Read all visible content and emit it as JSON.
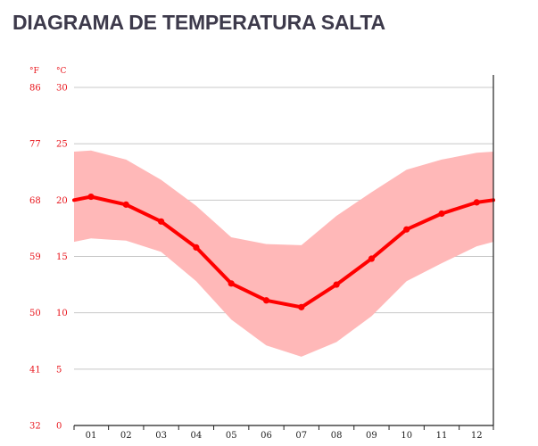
{
  "title": "DIAGRAMA DE TEMPERATURA SALTA",
  "chart_data": {
    "type": "line",
    "title": "DIAGRAMA DE TEMPERATURA SALTA",
    "xlabel": "",
    "ylabel": "",
    "unit_f": "°F",
    "unit_c": "°C",
    "categories": [
      "01",
      "02",
      "03",
      "04",
      "05",
      "06",
      "07",
      "08",
      "09",
      "10",
      "11",
      "12"
    ],
    "y_ticks_c": [
      "0",
      "5",
      "10",
      "15",
      "20",
      "25",
      "30"
    ],
    "y_ticks_f": [
      "32",
      "41",
      "50",
      "59",
      "68",
      "77",
      "86"
    ],
    "ylim": [
      0,
      30
    ],
    "grid": true,
    "colors": {
      "line": "#ff0000",
      "band": "#ffb8b8",
      "grid": "#c8c8c8",
      "axis_labels": "#e8141b",
      "title": "#3d3a4b"
    },
    "series": [
      {
        "role": "mean",
        "edge_start": 20.0,
        "values": [
          20.3,
          19.6,
          18.1,
          15.8,
          12.6,
          11.1,
          10.5,
          12.5,
          14.8,
          17.4,
          18.8,
          19.8
        ],
        "edge_end": 20.0
      },
      {
        "role": "max",
        "edge_start": 24.3,
        "values": [
          24.4,
          23.6,
          21.8,
          19.5,
          16.7,
          16.1,
          16.0,
          18.6,
          20.7,
          22.7,
          23.6,
          24.2
        ],
        "edge_end": 24.3
      },
      {
        "role": "min",
        "edge_start": 16.3,
        "values": [
          16.6,
          16.4,
          15.4,
          12.8,
          9.4,
          7.1,
          6.1,
          7.4,
          9.7,
          12.8,
          14.4,
          15.9
        ],
        "edge_end": 16.3
      }
    ]
  }
}
